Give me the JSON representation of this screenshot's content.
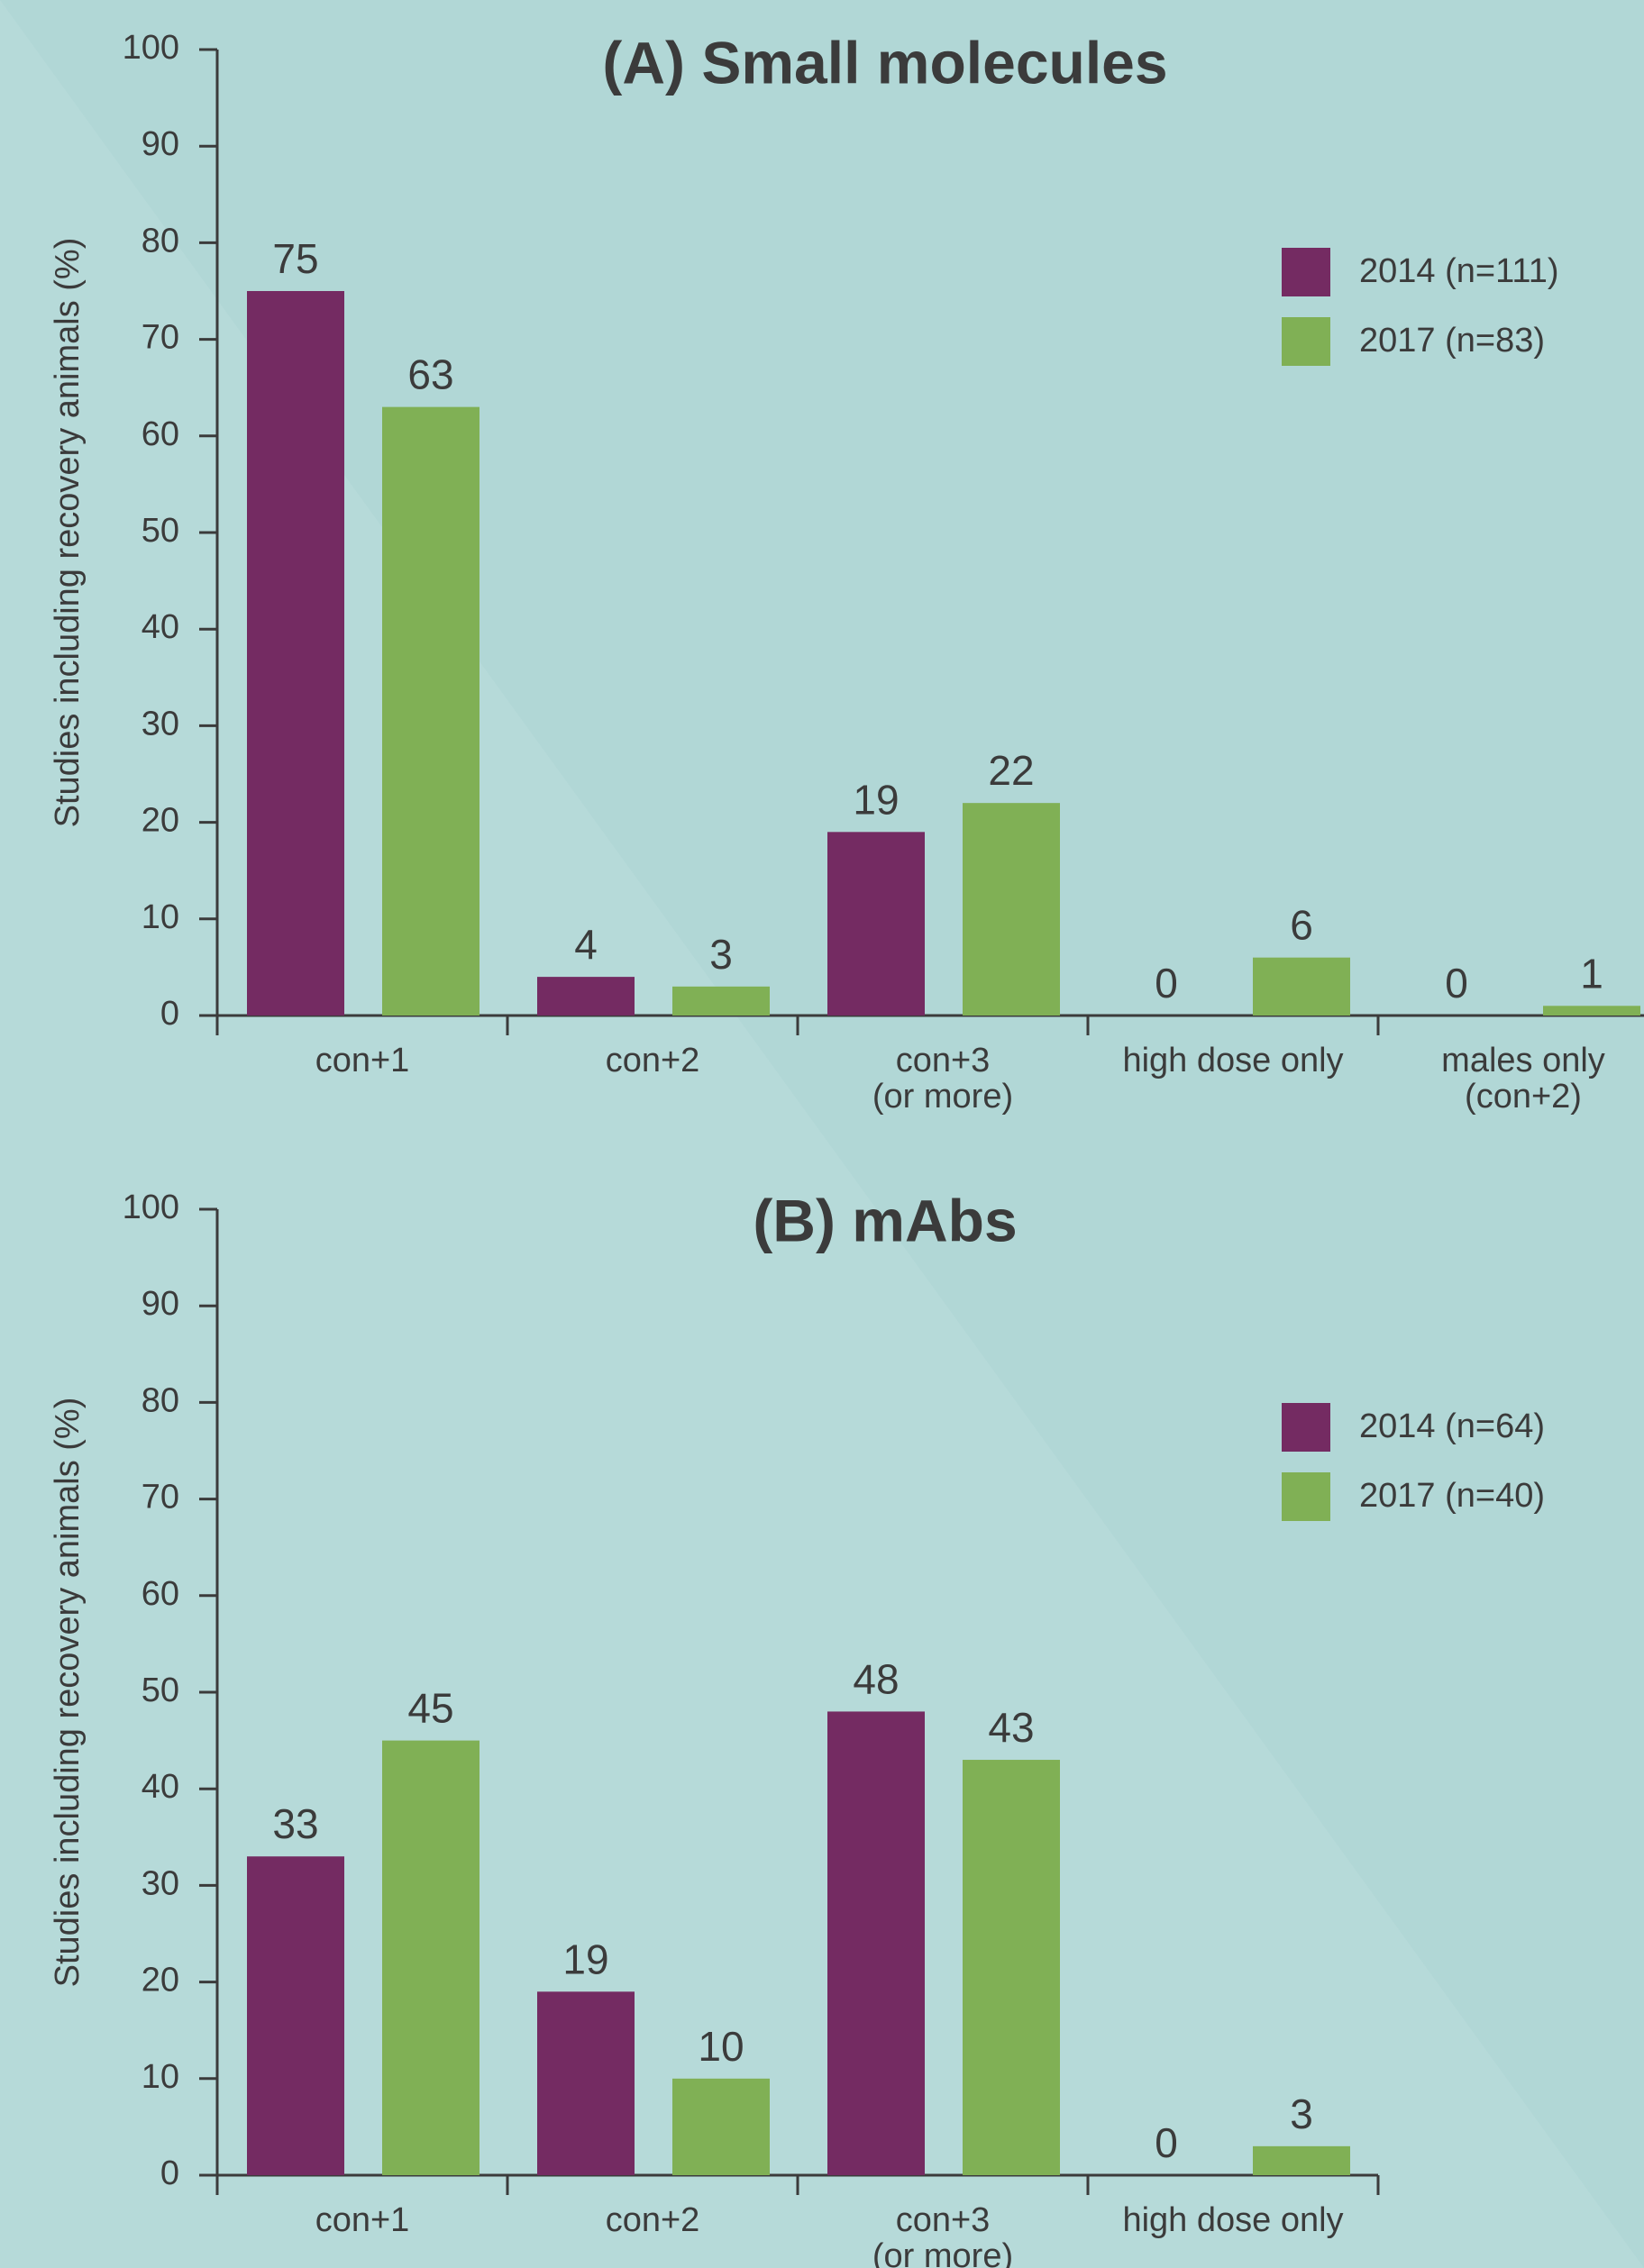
{
  "colors": {
    "series_2014": "#742b62",
    "series_2017": "#80b055",
    "axis": "#3b3b3b",
    "text": "#3b3b3b"
  },
  "chart_data": [
    {
      "type": "bar",
      "title": "(A) Small molecules",
      "ylabel": "Studies including recovery animals (%)",
      "xlabel": "",
      "ylim": [
        0,
        100
      ],
      "yticks": [
        0,
        10,
        20,
        30,
        40,
        50,
        60,
        70,
        80,
        90,
        100
      ],
      "grid": false,
      "legend_position": "top-right",
      "categories": [
        [
          "con+1"
        ],
        [
          "con+2"
        ],
        [
          "con+3",
          "(or more)"
        ],
        [
          "high dose only"
        ],
        [
          "males only",
          "(con+2)"
        ]
      ],
      "series": [
        {
          "name": "2014 (n=111)",
          "color_key": "series_2014",
          "values": [
            75,
            4,
            19,
            0,
            0
          ]
        },
        {
          "name": "2017 (n=83)",
          "color_key": "series_2017",
          "values": [
            63,
            3,
            22,
            6,
            1
          ]
        }
      ]
    },
    {
      "type": "bar",
      "title": "(B) mAbs",
      "ylabel": "Studies including recovery animals (%)",
      "xlabel": "",
      "ylim": [
        0,
        100
      ],
      "yticks": [
        0,
        10,
        20,
        30,
        40,
        50,
        60,
        70,
        80,
        90,
        100
      ],
      "grid": false,
      "legend_position": "top-right",
      "categories": [
        [
          "con+1"
        ],
        [
          "con+2"
        ],
        [
          "con+3",
          "(or more)"
        ],
        [
          "high dose only"
        ]
      ],
      "series": [
        {
          "name": "2014 (n=64)",
          "color_key": "series_2014",
          "values": [
            33,
            19,
            48,
            0
          ]
        },
        {
          "name": "2017 (n=40)",
          "color_key": "series_2017",
          "values": [
            45,
            10,
            43,
            3
          ]
        }
      ]
    }
  ]
}
